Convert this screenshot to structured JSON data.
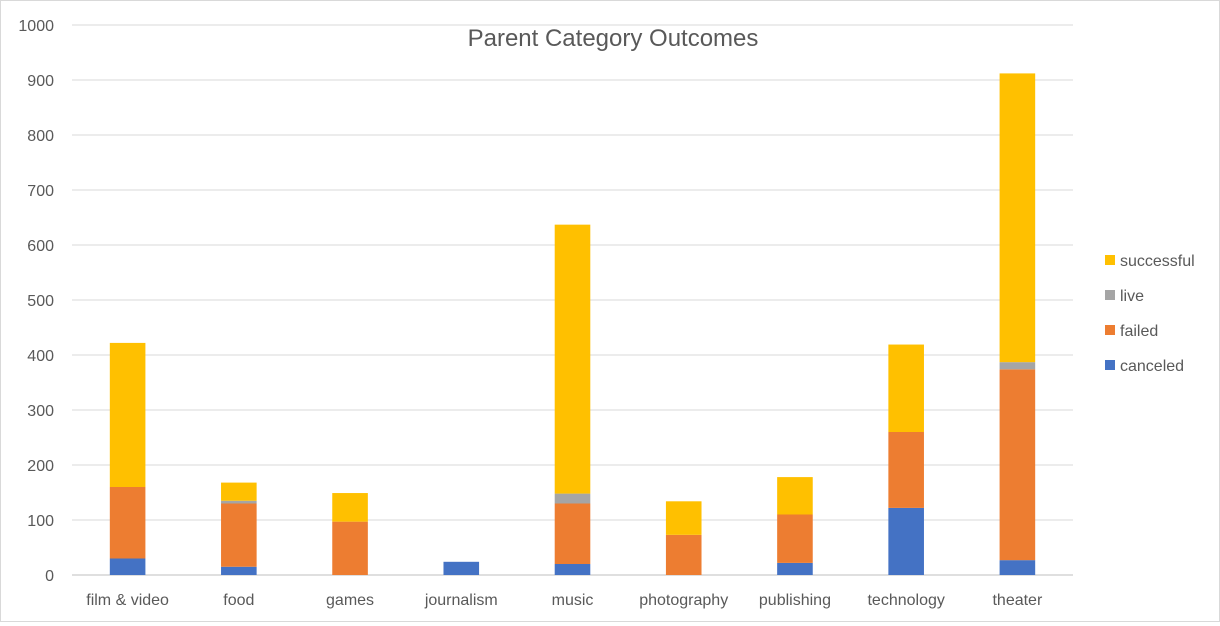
{
  "chart_data": {
    "type": "bar",
    "stacked": true,
    "title": "Parent Category Outcomes",
    "xlabel": "",
    "ylabel": "",
    "ylim": [
      0,
      1000
    ],
    "yticks": [
      0,
      100,
      200,
      300,
      400,
      500,
      600,
      700,
      800,
      900,
      1000
    ],
    "grid": true,
    "legend_position": "right",
    "categories": [
      "film & video",
      "food",
      "games",
      "journalism",
      "music",
      "photography",
      "publishing",
      "technology",
      "theater"
    ],
    "series": [
      {
        "name": "canceled",
        "color": "#4472c4",
        "values": [
          30,
          15,
          0,
          24,
          20,
          0,
          22,
          122,
          27
        ]
      },
      {
        "name": "failed",
        "color": "#ed7d31",
        "values": [
          130,
          115,
          97,
          0,
          110,
          73,
          88,
          138,
          347
        ]
      },
      {
        "name": "live",
        "color": "#a5a5a5",
        "values": [
          0,
          5,
          0,
          0,
          18,
          0,
          0,
          0,
          13
        ]
      },
      {
        "name": "successful",
        "color": "#ffc000",
        "values": [
          262,
          33,
          52,
          0,
          489,
          61,
          68,
          159,
          525
        ]
      }
    ]
  }
}
